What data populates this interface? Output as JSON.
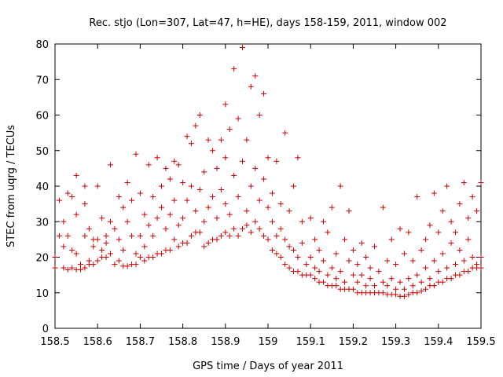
{
  "chart_data": {
    "type": "scatter",
    "title": "Rec. stjo (Lon=307, Lat=47, h=HE), days 158-159, 2011, window 002",
    "xlabel": "GPS time / Days of year 2011",
    "ylabel": "STEC from uqrg / TECUs",
    "xlim": [
      158.5,
      159.5
    ],
    "ylim": [
      0,
      80
    ],
    "x_ticks": [
      "158.5",
      "158.6",
      "158.7",
      "158.8",
      "158.9",
      "159",
      "159.1",
      "159.2",
      "159.3",
      "159.4",
      "159.5"
    ],
    "y_ticks": [
      "0",
      "10",
      "20",
      "30",
      "40",
      "50",
      "60",
      "70",
      "80"
    ],
    "grid": false,
    "marker": "+",
    "marker_color": "#cc0000",
    "series": [
      {
        "name": "",
        "points": [
          [
            158.5,
            17
          ],
          [
            158.5,
            20
          ],
          [
            158.51,
            26
          ],
          [
            158.51,
            36
          ],
          [
            158.52,
            17
          ],
          [
            158.52,
            23
          ],
          [
            158.52,
            30
          ],
          [
            158.53,
            16.5
          ],
          [
            158.53,
            26
          ],
          [
            158.53,
            38
          ],
          [
            158.54,
            17
          ],
          [
            158.54,
            22
          ],
          [
            158.54,
            37
          ],
          [
            158.55,
            16.5
          ],
          [
            158.55,
            21
          ],
          [
            158.55,
            32
          ],
          [
            158.55,
            43
          ],
          [
            158.56,
            16.5
          ],
          [
            158.56,
            18
          ],
          [
            158.57,
            17
          ],
          [
            158.57,
            26
          ],
          [
            158.57,
            35
          ],
          [
            158.57,
            40
          ],
          [
            158.58,
            18
          ],
          [
            158.58,
            19
          ],
          [
            158.58,
            28
          ],
          [
            158.59,
            18
          ],
          [
            158.59,
            23
          ],
          [
            158.59,
            25
          ],
          [
            158.6,
            19
          ],
          [
            158.6,
            25
          ],
          [
            158.6,
            40
          ],
          [
            158.61,
            20
          ],
          [
            158.61,
            22
          ],
          [
            158.61,
            31
          ],
          [
            158.62,
            20
          ],
          [
            158.62,
            24
          ],
          [
            158.62,
            26
          ],
          [
            158.63,
            21
          ],
          [
            158.63,
            30
          ],
          [
            158.63,
            46
          ],
          [
            158.64,
            18
          ],
          [
            158.64,
            28
          ],
          [
            158.65,
            19
          ],
          [
            158.65,
            25
          ],
          [
            158.65,
            37
          ],
          [
            158.66,
            17.5
          ],
          [
            158.66,
            22
          ],
          [
            158.66,
            34
          ],
          [
            158.67,
            17.5
          ],
          [
            158.67,
            30
          ],
          [
            158.67,
            41
          ],
          [
            158.68,
            18
          ],
          [
            158.68,
            26
          ],
          [
            158.68,
            36
          ],
          [
            158.69,
            18
          ],
          [
            158.69,
            21
          ],
          [
            158.69,
            49
          ],
          [
            158.7,
            20
          ],
          [
            158.7,
            26
          ],
          [
            158.7,
            38
          ],
          [
            158.71,
            19
          ],
          [
            158.71,
            23
          ],
          [
            158.71,
            32
          ],
          [
            158.72,
            20
          ],
          [
            158.72,
            29
          ],
          [
            158.72,
            46
          ],
          [
            158.73,
            20
          ],
          [
            158.73,
            26
          ],
          [
            158.73,
            37
          ],
          [
            158.74,
            21
          ],
          [
            158.74,
            31
          ],
          [
            158.74,
            48
          ],
          [
            158.75,
            21
          ],
          [
            158.75,
            34
          ],
          [
            158.75,
            40
          ],
          [
            158.76,
            22
          ],
          [
            158.76,
            28
          ],
          [
            158.76,
            45
          ],
          [
            158.77,
            22
          ],
          [
            158.77,
            32
          ],
          [
            158.77,
            42
          ],
          [
            158.78,
            25
          ],
          [
            158.78,
            36
          ],
          [
            158.78,
            47
          ],
          [
            158.79,
            23
          ],
          [
            158.79,
            29
          ],
          [
            158.79,
            46
          ],
          [
            158.8,
            24
          ],
          [
            158.8,
            31
          ],
          [
            158.8,
            41
          ],
          [
            158.81,
            24
          ],
          [
            158.81,
            36
          ],
          [
            158.81,
            54
          ],
          [
            158.82,
            26
          ],
          [
            158.82,
            40
          ],
          [
            158.82,
            52
          ],
          [
            158.83,
            27
          ],
          [
            158.83,
            33
          ],
          [
            158.83,
            57
          ],
          [
            158.84,
            27
          ],
          [
            158.84,
            39
          ],
          [
            158.84,
            60
          ],
          [
            158.85,
            23
          ],
          [
            158.85,
            30
          ],
          [
            158.85,
            44
          ],
          [
            158.86,
            24
          ],
          [
            158.86,
            34
          ],
          [
            158.86,
            53
          ],
          [
            158.87,
            25
          ],
          [
            158.87,
            37
          ],
          [
            158.87,
            50
          ],
          [
            158.88,
            25
          ],
          [
            158.88,
            31
          ],
          [
            158.88,
            45
          ],
          [
            158.89,
            26
          ],
          [
            158.89,
            39
          ],
          [
            158.89,
            53
          ],
          [
            158.9,
            27
          ],
          [
            158.9,
            35
          ],
          [
            158.9,
            48
          ],
          [
            158.9,
            63
          ],
          [
            158.91,
            26
          ],
          [
            158.91,
            32
          ],
          [
            158.91,
            56
          ],
          [
            158.92,
            28
          ],
          [
            158.92,
            43
          ],
          [
            158.92,
            73
          ],
          [
            158.93,
            26
          ],
          [
            158.93,
            37
          ],
          [
            158.93,
            59
          ],
          [
            158.94,
            28
          ],
          [
            158.94,
            47
          ],
          [
            158.94,
            79
          ],
          [
            158.95,
            29
          ],
          [
            158.95,
            33
          ],
          [
            158.95,
            53
          ],
          [
            158.96,
            27
          ],
          [
            158.96,
            40
          ],
          [
            158.96,
            68
          ],
          [
            158.97,
            30
          ],
          [
            158.97,
            45
          ],
          [
            158.97,
            71
          ],
          [
            158.98,
            28
          ],
          [
            158.98,
            36
          ],
          [
            158.98,
            60
          ],
          [
            158.99,
            26
          ],
          [
            158.99,
            42
          ],
          [
            158.99,
            66
          ],
          [
            159.0,
            25
          ],
          [
            159.0,
            34
          ],
          [
            159.0,
            48
          ],
          [
            159.01,
            22
          ],
          [
            159.01,
            30
          ],
          [
            159.01,
            38
          ],
          [
            159.02,
            21
          ],
          [
            159.02,
            26
          ],
          [
            159.02,
            47
          ],
          [
            159.03,
            20
          ],
          [
            159.03,
            28
          ],
          [
            159.03,
            35
          ],
          [
            159.04,
            18
          ],
          [
            159.04,
            25
          ],
          [
            159.04,
            55
          ],
          [
            159.05,
            17
          ],
          [
            159.05,
            23
          ],
          [
            159.05,
            33
          ],
          [
            159.06,
            16
          ],
          [
            159.06,
            22
          ],
          [
            159.06,
            40
          ],
          [
            159.07,
            16
          ],
          [
            159.07,
            20
          ],
          [
            159.07,
            48
          ],
          [
            159.08,
            15
          ],
          [
            159.08,
            24
          ],
          [
            159.08,
            30
          ],
          [
            159.09,
            15
          ],
          [
            159.09,
            18
          ],
          [
            159.1,
            15
          ],
          [
            159.1,
            20
          ],
          [
            159.1,
            31
          ],
          [
            159.11,
            14
          ],
          [
            159.11,
            17
          ],
          [
            159.11,
            25
          ],
          [
            159.12,
            13
          ],
          [
            159.12,
            16
          ],
          [
            159.12,
            22
          ],
          [
            159.13,
            13
          ],
          [
            159.13,
            19
          ],
          [
            159.13,
            30
          ],
          [
            159.14,
            12
          ],
          [
            159.14,
            15
          ],
          [
            159.14,
            27
          ],
          [
            159.15,
            12
          ],
          [
            159.15,
            17
          ],
          [
            159.15,
            34
          ],
          [
            159.16,
            12
          ],
          [
            159.16,
            14
          ],
          [
            159.16,
            21
          ],
          [
            159.17,
            11
          ],
          [
            159.17,
            16
          ],
          [
            159.17,
            40
          ],
          [
            159.18,
            11
          ],
          [
            159.18,
            13
          ],
          [
            159.18,
            25
          ],
          [
            159.19,
            11
          ],
          [
            159.19,
            19
          ],
          [
            159.19,
            33
          ],
          [
            159.2,
            11
          ],
          [
            159.2,
            15
          ],
          [
            159.2,
            22
          ],
          [
            159.21,
            10
          ],
          [
            159.21,
            13
          ],
          [
            159.21,
            18
          ],
          [
            159.22,
            10
          ],
          [
            159.22,
            15
          ],
          [
            159.22,
            24
          ],
          [
            159.23,
            10
          ],
          [
            159.23,
            12
          ],
          [
            159.23,
            20
          ],
          [
            159.24,
            10
          ],
          [
            159.24,
            14
          ],
          [
            159.24,
            17
          ],
          [
            159.25,
            10
          ],
          [
            159.25,
            12
          ],
          [
            159.25,
            23
          ],
          [
            159.26,
            10
          ],
          [
            159.26,
            16
          ],
          [
            159.27,
            10
          ],
          [
            159.27,
            13
          ],
          [
            159.27,
            34
          ],
          [
            159.28,
            9.5
          ],
          [
            159.28,
            12
          ],
          [
            159.28,
            19
          ],
          [
            159.29,
            9.5
          ],
          [
            159.29,
            14
          ],
          [
            159.29,
            25
          ],
          [
            159.3,
            9.5
          ],
          [
            159.3,
            11
          ],
          [
            159.3,
            18
          ],
          [
            159.31,
            9
          ],
          [
            159.31,
            13
          ],
          [
            159.31,
            28
          ],
          [
            159.32,
            9
          ],
          [
            159.32,
            11
          ],
          [
            159.32,
            21
          ],
          [
            159.33,
            9.5
          ],
          [
            159.33,
            14
          ],
          [
            159.33,
            27
          ],
          [
            159.34,
            10
          ],
          [
            159.34,
            12
          ],
          [
            159.34,
            19
          ],
          [
            159.35,
            10
          ],
          [
            159.35,
            15
          ],
          [
            159.35,
            37
          ],
          [
            159.36,
            10.5
          ],
          [
            159.36,
            13
          ],
          [
            159.36,
            22
          ],
          [
            159.37,
            11
          ],
          [
            159.37,
            17
          ],
          [
            159.37,
            25
          ],
          [
            159.38,
            12
          ],
          [
            159.38,
            14
          ],
          [
            159.38,
            29
          ],
          [
            159.39,
            12
          ],
          [
            159.39,
            19
          ],
          [
            159.39,
            38
          ],
          [
            159.4,
            13
          ],
          [
            159.4,
            16
          ],
          [
            159.4,
            27
          ],
          [
            159.41,
            13
          ],
          [
            159.41,
            21
          ],
          [
            159.41,
            33
          ],
          [
            159.42,
            14
          ],
          [
            159.42,
            17
          ],
          [
            159.42,
            40
          ],
          [
            159.43,
            14
          ],
          [
            159.43,
            24
          ],
          [
            159.43,
            30
          ],
          [
            159.44,
            15
          ],
          [
            159.44,
            18
          ],
          [
            159.44,
            27
          ],
          [
            159.45,
            15
          ],
          [
            159.45,
            22
          ],
          [
            159.45,
            35
          ],
          [
            159.46,
            16
          ],
          [
            159.46,
            19
          ],
          [
            159.46,
            41
          ],
          [
            159.47,
            16
          ],
          [
            159.47,
            25
          ],
          [
            159.47,
            31
          ],
          [
            159.48,
            17
          ],
          [
            159.48,
            20
          ],
          [
            159.48,
            37
          ],
          [
            159.49,
            17
          ],
          [
            159.49,
            18
          ],
          [
            159.49,
            33
          ],
          [
            159.5,
            17
          ],
          [
            159.5,
            20
          ],
          [
            159.5,
            41
          ]
        ]
      }
    ]
  }
}
